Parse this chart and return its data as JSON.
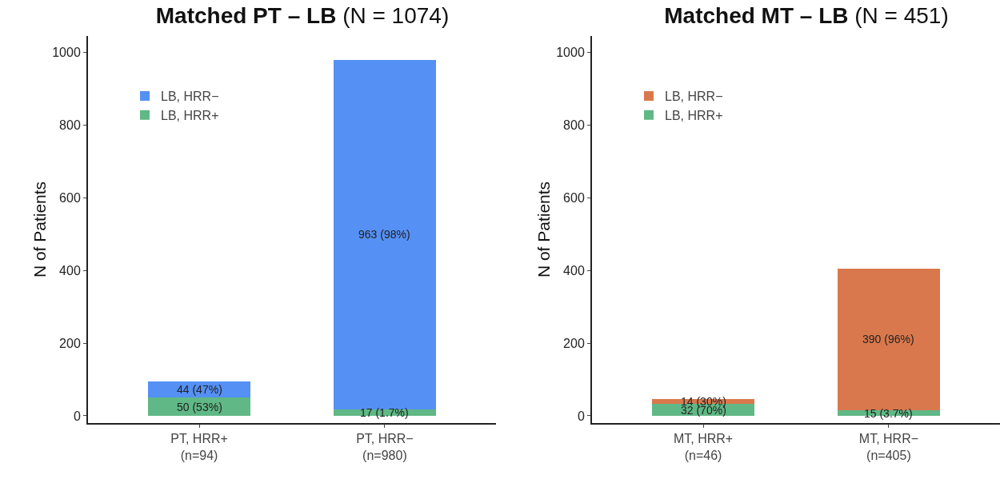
{
  "chart_data": [
    {
      "type": "bar",
      "title": "Matched PT – LB",
      "subtitle": "(N = 1074)",
      "ylabel": "N of Patients",
      "categories": [
        "PT, HRR+\n(n=94)",
        "PT, HRR−\n(n=980)"
      ],
      "stacked": true,
      "series": [
        {
          "name": "LB, HRR+",
          "color": "#5fb885",
          "values": [
            50,
            17
          ],
          "value_labels": [
            "50 (53%)",
            "17 (1.7%)"
          ]
        },
        {
          "name": "LB, HRR−",
          "color": "#5590f5",
          "values": [
            44,
            963
          ],
          "value_labels": [
            "44 (47%)",
            "963 (98%)"
          ]
        }
      ],
      "ylim": [
        -20,
        1045
      ],
      "yticks": [
        0,
        200,
        400,
        600,
        800,
        1000
      ],
      "grid": false,
      "legend": "top left"
    },
    {
      "type": "bar",
      "title": "Matched MT – LB",
      "subtitle": "(N = 451)",
      "ylabel": "N of Patients",
      "categories": [
        "MT, HRR+\n(n=46)",
        "MT, HRR−\n(n=405)"
      ],
      "stacked": true,
      "series": [
        {
          "name": "LB, HRR+",
          "color": "#5fb885",
          "values": [
            32,
            15
          ],
          "value_labels": [
            "32 (70%)",
            "15 (3.7%)"
          ]
        },
        {
          "name": "LB, HRR−",
          "color": "#d9784d",
          "values": [
            14,
            390
          ],
          "value_labels": [
            "14 (30%)",
            "390 (96%)"
          ]
        }
      ],
      "ylim": [
        -20,
        1045
      ],
      "yticks": [
        0,
        200,
        400,
        600,
        800,
        1000
      ],
      "grid": false,
      "legend": "top left"
    }
  ]
}
